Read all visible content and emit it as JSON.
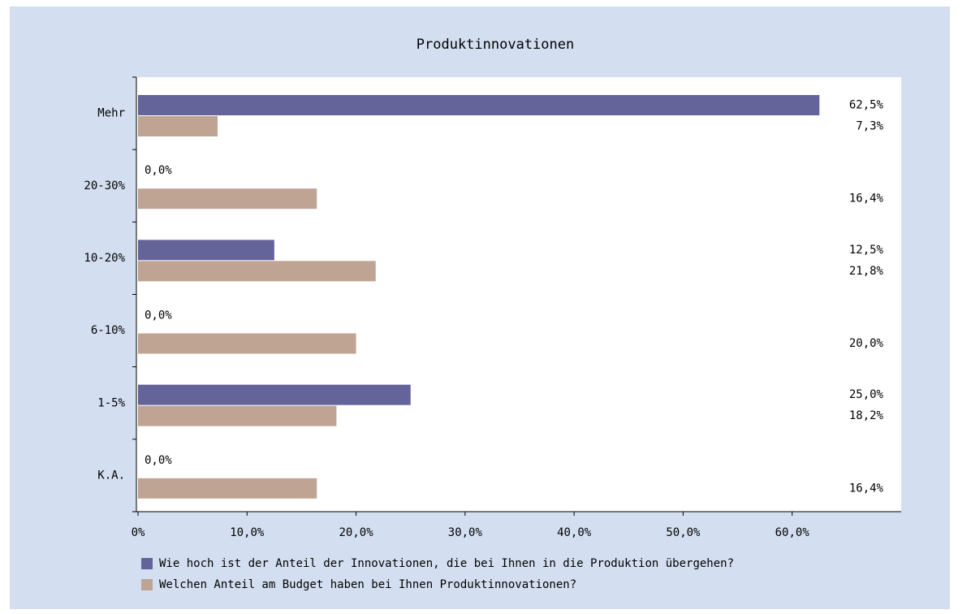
{
  "chart_data": {
    "type": "hbar",
    "title": "Produktinnovationen",
    "categories": [
      "Mehr",
      "20-30%",
      "10-20%",
      "6-10%",
      "1-5%",
      "K.A."
    ],
    "series": [
      {
        "name": "Wie hoch ist der Anteil der Innovationen, die bei Ihnen in die Produktion übergehen?",
        "color": "#64639a",
        "values": [
          62.5,
          0,
          12.5,
          0,
          25,
          0
        ],
        "value_labels": [
          "62,5%",
          "0,0%",
          "12,5%",
          "0,0%",
          "25,0%",
          "0,0%"
        ]
      },
      {
        "name": "Welchen Anteil am Budget haben bei Ihnen Produktinnovationen?",
        "color": "#bfa493",
        "values": [
          7.3,
          16.4,
          21.8,
          20,
          18.2,
          16.4
        ],
        "value_labels": [
          "7,3%",
          "16,4%",
          "21,8%",
          "20,0%",
          "18,2%",
          "16,4%"
        ]
      }
    ],
    "xlim": [
      0,
      70
    ],
    "xticks": [
      {
        "value": 0,
        "label": "0%"
      },
      {
        "value": 10,
        "label": "10,0%"
      },
      {
        "value": 20,
        "label": "20,0%"
      },
      {
        "value": 30,
        "label": "30,0%"
      },
      {
        "value": 40,
        "label": "40,0%"
      },
      {
        "value": 50,
        "label": "50,0%"
      },
      {
        "value": 60,
        "label": "60,0%"
      }
    ],
    "legend": "bottom"
  }
}
